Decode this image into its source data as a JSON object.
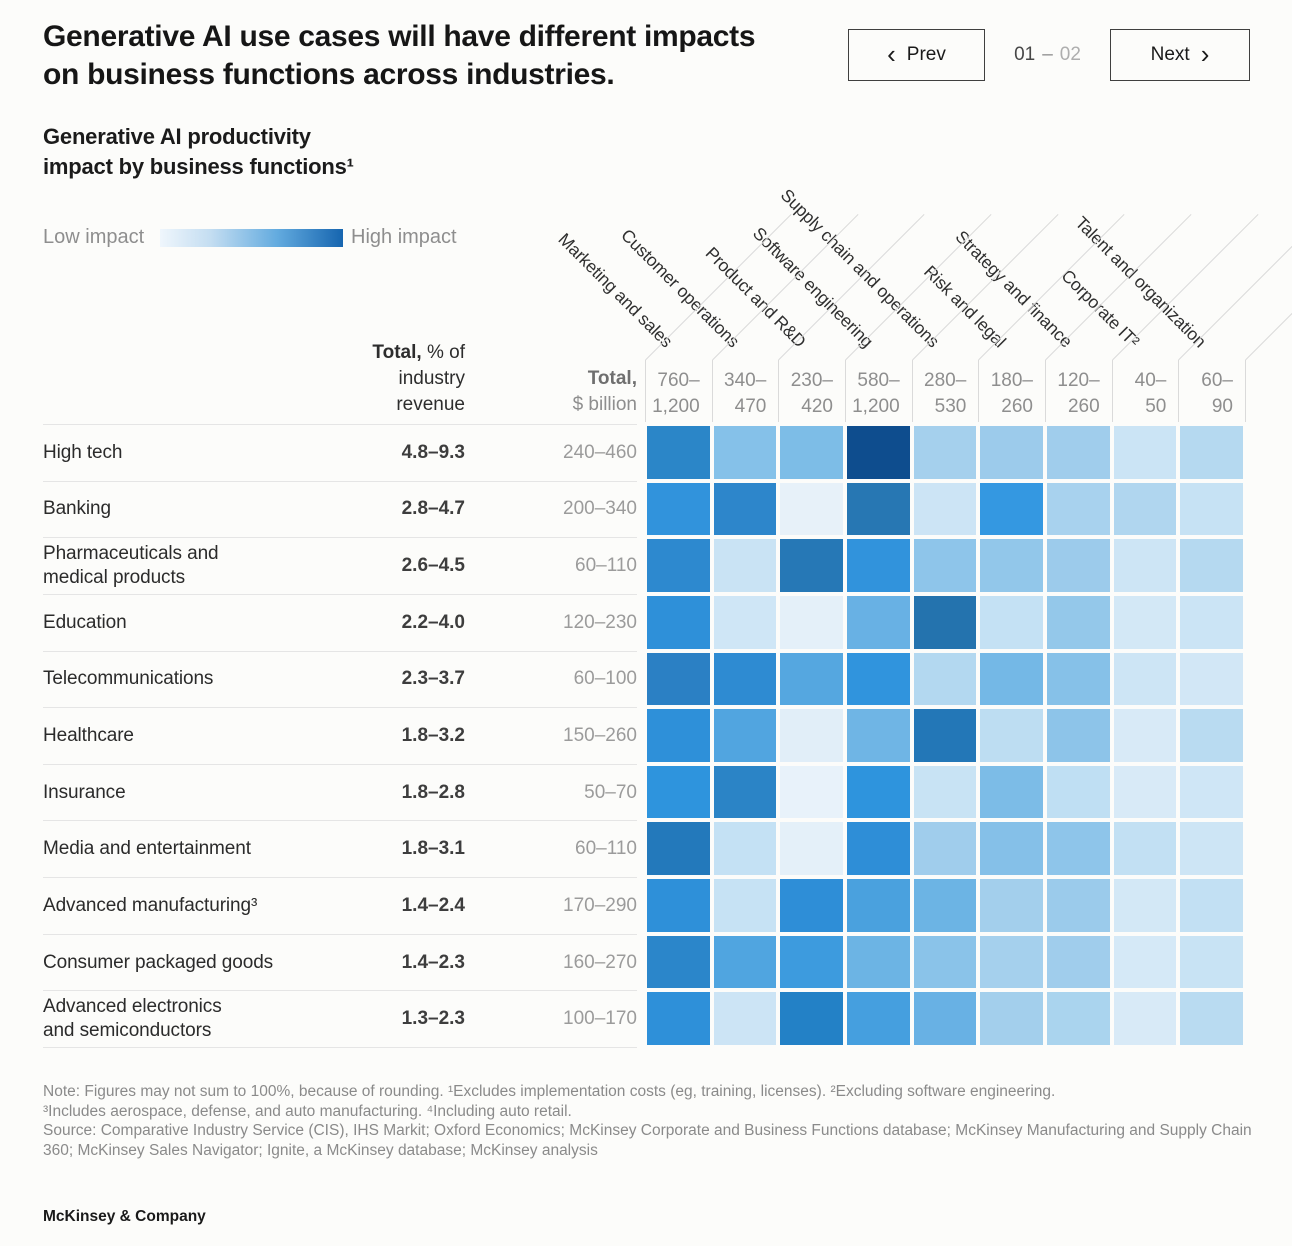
{
  "header": {
    "title_line1": "Generative AI use cases will have different impacts",
    "title_line2": "on business functions across industries.",
    "nav": {
      "prev_label": "Prev",
      "next_label": "Next",
      "prev_chevron": "‹",
      "next_chevron": "›",
      "page_current": "01",
      "page_separator": "–",
      "page_total": "02"
    }
  },
  "subtitle_line1": "Generative AI productivity",
  "subtitle_line2": "impact by business functions¹",
  "legend": {
    "low_label": "Low impact",
    "high_label": "High impact",
    "gradient_start": "#eff6fc",
    "gradient_end": "#1665af"
  },
  "chart_data": {
    "type": "heatmap",
    "title": "Generative AI productivity impact by business functions¹",
    "legend": {
      "low": "Low impact",
      "high": "High impact"
    },
    "pct_header": {
      "line1_bold": "Total,",
      "line1_rest": " % of",
      "line2": "industry",
      "line3": "revenue"
    },
    "bil_header": {
      "line1_bold": "Total,",
      "line2": "$ billion"
    },
    "columns": [
      {
        "label": "Marketing and sales",
        "total_line1": "760–",
        "total_line2": "1,200"
      },
      {
        "label": "Customer operations",
        "total_line1": "340–",
        "total_line2": "470"
      },
      {
        "label": "Product and R&D",
        "total_line1": "230–",
        "total_line2": "420"
      },
      {
        "label": "Software engineering",
        "total_line1": "580–",
        "total_line2": "1,200"
      },
      {
        "label": "Supply chain and operations",
        "total_line1": "280–",
        "total_line2": "530"
      },
      {
        "label": "Risk and legal",
        "total_line1": "180–",
        "total_line2": "260"
      },
      {
        "label": "Strategy and finance",
        "total_line1": "120–",
        "total_line2": "260"
      },
      {
        "label": "Corporate IT²",
        "total_line1": "40–",
        "total_line2": "50"
      },
      {
        "label": "Talent and organization",
        "total_line1": "60–",
        "total_line2": "90"
      }
    ],
    "rows": [
      {
        "label_lines": [
          "High tech"
        ],
        "pct": "4.8–9.3",
        "billion": "240–460",
        "cells": [
          "#2b86c8",
          "#85c1e9",
          "#7dbde7",
          "#0e4d8e",
          "#a5d0ed",
          "#9ccbeb",
          "#a0cdec",
          "#cbe4f5",
          "#b5d9f0"
        ]
      },
      {
        "label_lines": [
          "Banking"
        ],
        "pct": "2.8–4.7",
        "billion": "200–340",
        "cells": [
          "#3193dc",
          "#2d86cb",
          "#e7f1f9",
          "#2777b3",
          "#cce4f5",
          "#3498e1",
          "#a8d2ee",
          "#b0d6ef",
          "#c6e2f4"
        ]
      },
      {
        "label_lines": [
          "Pharmaceuticals and",
          "medical products"
        ],
        "pct": "2.6–4.5",
        "billion": "60–110",
        "cells": [
          "#2d89cf",
          "#c9e3f4",
          "#2678b6",
          "#3193dc",
          "#8ec5ea",
          "#92c7ea",
          "#9ccbeb",
          "#cde5f5",
          "#b5d9f0"
        ]
      },
      {
        "label_lines": [
          "Education"
        ],
        "pct": "2.2–4.0",
        "billion": "120–230",
        "cells": [
          "#2e90d9",
          "#cfe6f6",
          "#e4f0f9",
          "#68b1e4",
          "#2473ae",
          "#c4e1f4",
          "#94c8ea",
          "#d3e8f6",
          "#cbe4f5"
        ]
      },
      {
        "label_lines": [
          "Telecommunications"
        ],
        "pct": "2.3–3.7",
        "billion": "60–100",
        "cells": [
          "#2b80c4",
          "#2e8bd2",
          "#55a7e0",
          "#3094dd",
          "#b3d8f0",
          "#74b8e6",
          "#86c1e8",
          "#cde5f5",
          "#d2e7f6"
        ]
      },
      {
        "label_lines": [
          "Healthcare"
        ],
        "pct": "1.8–3.2",
        "billion": "150–260",
        "cells": [
          "#2e90d9",
          "#51a5e0",
          "#e1eef8",
          "#6fb5e5",
          "#2377b7",
          "#bdddf2",
          "#8dc4e9",
          "#d8eaf7",
          "#b9dbf1"
        ]
      },
      {
        "label_lines": [
          "Insurance"
        ],
        "pct": "1.8–2.8",
        "billion": "50–70",
        "cells": [
          "#2e94dd",
          "#2b84c6",
          "#e8f2fa",
          "#2e94dd",
          "#c8e3f4",
          "#7cbce7",
          "#bfdff3",
          "#d8eaf7",
          "#cfe6f6"
        ]
      },
      {
        "label_lines": [
          "Media and entertainment"
        ],
        "pct": "1.8–3.1",
        "billion": "60–110",
        "cells": [
          "#2379bb",
          "#c4e1f4",
          "#e4f0f9",
          "#2e8ed7",
          "#a0cdec",
          "#85c0e8",
          "#8ec5ea",
          "#c2e0f3",
          "#cde5f5"
        ]
      },
      {
        "label_lines": [
          "Advanced manufacturing³"
        ],
        "pct": "1.4–2.4",
        "billion": "170–290",
        "cells": [
          "#2e90d9",
          "#c6e2f4",
          "#2e8ed7",
          "#4aa1de",
          "#6cb4e4",
          "#a3cfec",
          "#9bcbeb",
          "#d3e8f6",
          "#c2e0f3"
        ]
      },
      {
        "label_lines": [
          "Consumer packaged goods"
        ],
        "pct": "1.4–2.3",
        "billion": "160–270",
        "cells": [
          "#2b86ca",
          "#50a5e0",
          "#3d9bde",
          "#6cb4e4",
          "#8ac3e9",
          "#a5d0ed",
          "#a0cdec",
          "#d5e9f7",
          "#c8e3f4"
        ]
      },
      {
        "label_lines": [
          "Advanced electronics",
          "and semiconductors"
        ],
        "pct": "1.3–2.3",
        "billion": "100–170",
        "cells": [
          "#2e90d9",
          "#cce4f5",
          "#2381c6",
          "#459fdf",
          "#68b1e4",
          "#a3cfec",
          "#aad4ee",
          "#d8eaf7",
          "#b9dbf1"
        ]
      }
    ]
  },
  "footer": {
    "note_line1": "Note: Figures may not sum to 100%, because of rounding. ¹Excludes implementation costs (eg, training, licenses). ²Excluding software engineering.",
    "note_line2": "³Includes aerospace, defense, and auto manufacturing. ⁴Including auto retail.",
    "source": "Source: Comparative Industry Service (CIS), IHS Markit; Oxford Economics; McKinsey Corporate and Business Functions database; McKinsey Manufacturing and Supply Chain 360; McKinsey Sales Navigator; Ignite, a McKinsey database; McKinsey analysis",
    "brand": "McKinsey & Company"
  }
}
